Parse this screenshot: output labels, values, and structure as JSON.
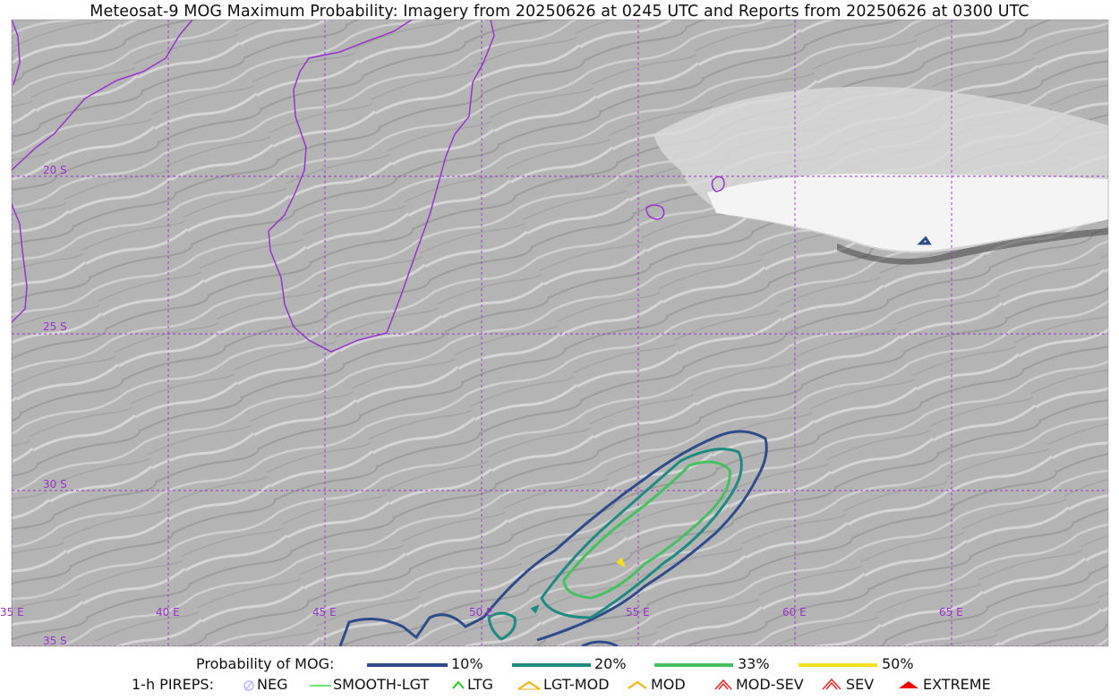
{
  "title": "Meteosat-9 MOG Maximum Probability: Imagery from 20250626 at 0245 UTC and Reports from 20250626 at 0300 UTC",
  "map": {
    "lat_labels": [
      "20 S",
      "25 S",
      "30 S",
      "35 S"
    ],
    "lon_labels": [
      "35 E",
      "40 E",
      "45 E",
      "50 E",
      "55 E",
      "60 E",
      "65 E"
    ],
    "graticule_color": "#9933cc",
    "coastline_color": "#9933cc"
  },
  "legend": {
    "probability_title": "Probability of MOG:",
    "probability_levels": [
      {
        "label": "10%",
        "color": "#2e4b8a"
      },
      {
        "label": "20%",
        "color": "#1f8a82"
      },
      {
        "label": "33%",
        "color": "#46c060"
      },
      {
        "label": "50%",
        "color": "#f5e020"
      }
    ],
    "pireps_title": "1-h PIREPS:",
    "pireps": [
      {
        "label": "NEG",
        "color": "#b8b8ff",
        "icon": "neg-circle-icon"
      },
      {
        "label": "SMOOTH-LGT",
        "color": "#44dd44",
        "icon": "line-icon"
      },
      {
        "label": "LTG",
        "color": "#22cc22",
        "icon": "chevron-icon"
      },
      {
        "label": "LGT-MOD",
        "color": "#f5b000",
        "icon": "hat-icon"
      },
      {
        "label": "MOD",
        "color": "#f5b000",
        "icon": "chevron-icon"
      },
      {
        "label": "MOD-SEV",
        "color": "#ee2222",
        "icon": "double-hat-icon"
      },
      {
        "label": "SEV",
        "color": "#ee2222",
        "icon": "double-chevron-icon"
      },
      {
        "label": "EXTREME",
        "color": "#ee0000",
        "icon": "filled-hat-icon"
      }
    ]
  }
}
